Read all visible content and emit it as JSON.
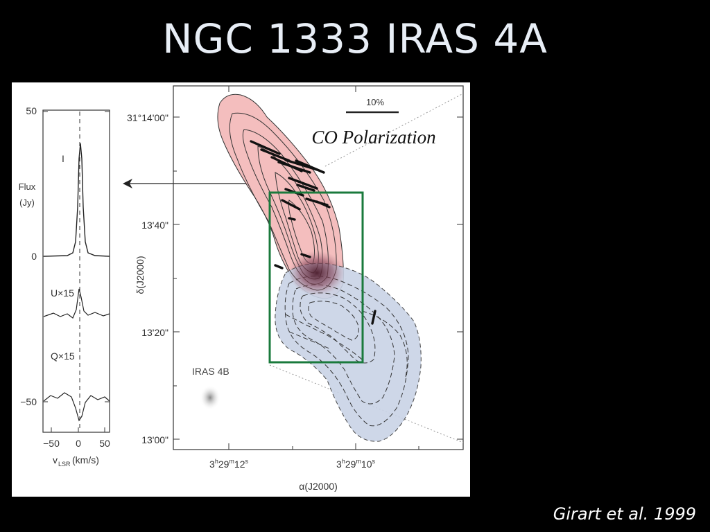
{
  "slide": {
    "title": "NGC 1333 IRAS 4A",
    "citation": "Girart et al. 1999"
  },
  "spectrum_panel": {
    "y_ticks": [
      "50",
      "0",
      "−50"
    ],
    "x_ticks": [
      "−50",
      "0",
      "50"
    ],
    "xlabel_v": "v",
    "xlabel_sub": "LSR",
    "xlabel_unit": "(km/s)",
    "ylabel_line1": "Flux",
    "ylabel_line2": "(Jy)",
    "trace_labels": [
      "I",
      "U×15",
      "Q×15"
    ]
  },
  "map_panel": {
    "overlay_title": "CO Polarization",
    "scale_bar_label": "10%",
    "dec_ticks": [
      "31°14'00\"",
      "13'40\"",
      "13'20\"",
      "13'00\""
    ],
    "ra_tick_1": [
      "3",
      "h",
      "29",
      "m",
      "12",
      "s"
    ],
    "ra_tick_2": [
      "3",
      "h",
      "29",
      "m",
      "10",
      "s"
    ],
    "xlabel": "α(J2000)",
    "ylabel": "δ(J2000)",
    "source_label": "IRAS 4B"
  },
  "colors": {
    "red_lobe": "#f2b3b3",
    "blue_lobe": "#c9d3e6",
    "highlight_box": "#1a7a3c"
  }
}
